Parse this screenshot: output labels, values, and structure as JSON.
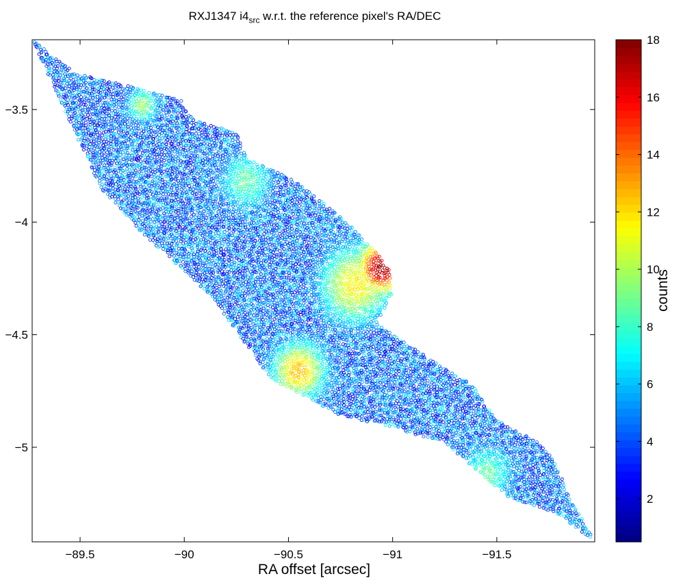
{
  "title": {
    "main": "RXJ1347 i4",
    "sub": "src",
    "rest": " w.r.t. the reference pixel's RA/DEC"
  },
  "chart_data": {
    "type": "scatter",
    "title": "RXJ1347 i4src w.r.t. the reference pixel's RA/DEC",
    "xlabel": "RA offset [arcsec]",
    "ylabel": "",
    "xlim": [
      -89.27,
      -91.97
    ],
    "ylim": [
      -3.19,
      -5.42
    ],
    "x_reversed": true,
    "y_reversed": true,
    "xticks": [
      -89.5,
      -90,
      -90.5,
      -91,
      -91.5
    ],
    "xtick_labels": [
      "−89.5",
      "−90",
      "−90.5",
      "−91",
      "−91.5"
    ],
    "yticks": [
      -3.5,
      -4,
      -4.5,
      -5
    ],
    "ytick_labels": [
      "−3.5",
      "−4",
      "−4.5",
      "−5"
    ],
    "grid": false,
    "marker": "open circle",
    "colorbar": {
      "label": "counts",
      "colormap": "jet",
      "range": [
        0.5,
        18
      ],
      "ticks": [
        2,
        4,
        6,
        8,
        10,
        12,
        14,
        16,
        18
      ],
      "tick_labels": [
        "2",
        "4",
        "6",
        "8",
        "10",
        "12",
        "14",
        "16",
        "18"
      ]
    },
    "region_outline": [
      [
        -89.27,
        -3.19
      ],
      [
        -89.48,
        -3.34
      ],
      [
        -89.75,
        -3.4
      ],
      [
        -89.98,
        -3.45
      ],
      [
        -90.05,
        -3.55
      ],
      [
        -90.25,
        -3.6
      ],
      [
        -90.3,
        -3.72
      ],
      [
        -90.5,
        -3.8
      ],
      [
        -90.58,
        -3.85
      ],
      [
        -90.78,
        -4.0
      ],
      [
        -90.9,
        -4.11
      ],
      [
        -90.98,
        -4.2
      ],
      [
        -91.0,
        -4.32
      ],
      [
        -90.92,
        -4.45
      ],
      [
        -91.05,
        -4.53
      ],
      [
        -91.3,
        -4.68
      ],
      [
        -91.38,
        -4.72
      ],
      [
        -91.5,
        -4.88
      ],
      [
        -91.7,
        -4.98
      ],
      [
        -91.77,
        -5.05
      ],
      [
        -91.85,
        -5.22
      ],
      [
        -91.97,
        -5.42
      ],
      [
        -91.8,
        -5.3
      ],
      [
        -91.55,
        -5.22
      ],
      [
        -91.4,
        -5.1
      ],
      [
        -91.25,
        -4.98
      ],
      [
        -90.95,
        -4.9
      ],
      [
        -90.75,
        -4.86
      ],
      [
        -90.63,
        -4.8
      ],
      [
        -90.42,
        -4.7
      ],
      [
        -90.3,
        -4.55
      ],
      [
        -90.2,
        -4.42
      ],
      [
        -90.15,
        -4.35
      ],
      [
        -89.92,
        -4.15
      ],
      [
        -89.8,
        -4.05
      ],
      [
        -89.6,
        -3.85
      ],
      [
        -89.4,
        -3.45
      ],
      [
        -89.27,
        -3.19
      ]
    ],
    "hotspots": [
      {
        "x": -90.95,
        "y": -4.2,
        "peak": 17,
        "radius": 0.09
      },
      {
        "x": -90.55,
        "y": -4.66,
        "peak": 12,
        "radius": 0.1
      },
      {
        "x": -90.82,
        "y": -4.28,
        "peak": 11,
        "radius": 0.13
      },
      {
        "x": -90.3,
        "y": -3.82,
        "peak": 8,
        "radius": 0.1
      },
      {
        "x": -91.45,
        "y": -5.12,
        "peak": 8,
        "radius": 0.1
      },
      {
        "x": -89.8,
        "y": -3.48,
        "peak": 9,
        "radius": 0.06
      }
    ],
    "background_counts_range": [
      2,
      7
    ]
  }
}
